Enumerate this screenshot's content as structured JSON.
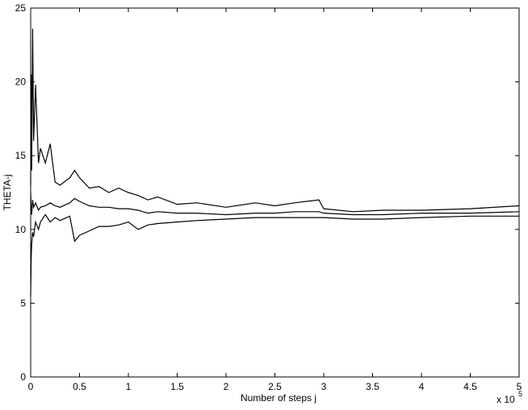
{
  "chart_data": {
    "type": "line",
    "xlabel": "Number of steps j",
    "ylabel": "THETA-j",
    "x_multiplier": "x 10",
    "x_multiplier_exponent": "5",
    "x": [
      0,
      0.005,
      0.01,
      0.02,
      0.03,
      0.05,
      0.08,
      0.1,
      0.15,
      0.2,
      0.25,
      0.3,
      0.4,
      0.45,
      0.5,
      0.6,
      0.7,
      0.8,
      0.9,
      1.0,
      1.1,
      1.2,
      1.3,
      1.5,
      1.7,
      2.0,
      2.3,
      2.5,
      2.7,
      2.95,
      3.0,
      3.3,
      3.6,
      4.0,
      4.5,
      5.0
    ],
    "series": [
      {
        "color": "#000000",
        "values": [
          13,
          20.5,
          14,
          23.6,
          16,
          19.8,
          14.5,
          15.5,
          14.5,
          15.8,
          13.2,
          13,
          13.5,
          14,
          13.5,
          12.8,
          12.9,
          12.5,
          12.8,
          12.5,
          12.3,
          12.0,
          12.2,
          11.7,
          11.8,
          11.5,
          11.8,
          11.6,
          11.8,
          12.0,
          11.4,
          11.2,
          11.3,
          11.3,
          11.4,
          11.6
        ]
      },
      {
        "color": "#000000",
        "values": [
          12.5,
          11.5,
          11,
          12,
          11.5,
          11.8,
          11.3,
          11.5,
          11.6,
          11.8,
          11.6,
          11.5,
          11.8,
          12.1,
          11.9,
          11.6,
          11.5,
          11.5,
          11.4,
          11.4,
          11.3,
          11.1,
          11.2,
          11.1,
          11.1,
          11.0,
          11.1,
          11.1,
          11.2,
          11.2,
          11.1,
          11.0,
          11.0,
          11.1,
          11.1,
          11.2
        ]
      },
      {
        "color": "#000000",
        "values": [
          5.5,
          8,
          9,
          9.8,
          9.5,
          10.5,
          10,
          10.5,
          11,
          10.5,
          10.8,
          10.6,
          10.9,
          9.2,
          9.6,
          9.9,
          10.2,
          10.2,
          10.3,
          10.5,
          10.0,
          10.3,
          10.4,
          10.5,
          10.6,
          10.7,
          10.8,
          10.8,
          10.8,
          10.8,
          10.8,
          10.7,
          10.7,
          10.8,
          10.9,
          10.9
        ]
      }
    ],
    "xlim": [
      0,
      5
    ],
    "xticks": [
      0,
      0.5,
      1,
      1.5,
      2,
      2.5,
      3,
      3.5,
      4,
      4.5,
      5
    ],
    "ylim": [
      0,
      25
    ],
    "yticks": [
      0,
      5,
      10,
      15,
      20,
      25
    ],
    "grid": false
  }
}
